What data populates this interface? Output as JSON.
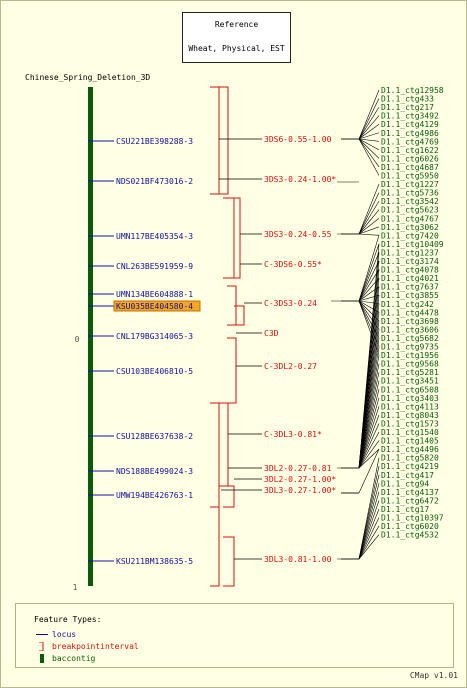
{
  "reference": {
    "title": "Reference",
    "subtitle": "Wheat, Physical, EST"
  },
  "map_title": "Chinese_Spring_Deletion_3D",
  "axis": {
    "start": "0",
    "end": "1"
  },
  "loci": [
    {
      "label": "CSU221BE398288-3"
    },
    {
      "label": "NDS021BF473016-2"
    },
    {
      "label": "UMN117BE405354-3"
    },
    {
      "label": "CNL263BE591959-9"
    },
    {
      "label": "UMN134BE604888-1"
    },
    {
      "label": "KSU035BE404580-4",
      "highlight": true
    },
    {
      "label": "CNL179BG314065-3"
    },
    {
      "label": "CSU103BE406810-5"
    },
    {
      "label": "CSU128BE637638-2"
    },
    {
      "label": "NDS188BE499024-3"
    },
    {
      "label": "UMW194BE426763-1"
    },
    {
      "label": "KSU211BM138635-5"
    }
  ],
  "intervals": [
    {
      "label": "3DS6-0.55-1.00"
    },
    {
      "label": "3DS3-0.24-1.00*"
    },
    {
      "label": "3DS3-0.24-0.55"
    },
    {
      "label": "C-3DS6-0.55*"
    },
    {
      "label": "C-3DS3-0.24"
    },
    {
      "label": "C3D"
    },
    {
      "label": "C-3DL2-0.27"
    },
    {
      "label": "C-3DL3-0.81*"
    },
    {
      "label": "3DL2-0.27-0.81"
    },
    {
      "label": "3DL2-0.27-1.00*"
    },
    {
      "label": "3DL3-0.27-1.00*"
    },
    {
      "label": "3DL3-0.81-1.00"
    }
  ],
  "contigs": [
    "D1.1_ctg12958",
    "D1.1_ctg433",
    "D1.1_ctg217",
    "D1.1_ctg3492",
    "D1.1_ctg4129",
    "D1.1_ctg4986",
    "D1.1_ctg4769",
    "D1.1_ctg1622",
    "D1.1_ctg6026",
    "D1.1_ctg4687",
    "D1.1_ctg5950",
    "D1.1_ctg1227",
    "D1.1_ctg5736",
    "D1.1_ctg3542",
    "D1.1_ctg5623",
    "D1.1_ctg4767",
    "D1.1_ctg3062",
    "D1.1_ctg7420",
    "D1.1_ctg10409",
    "D1.1_ctg1237",
    "D1.1_ctg3174",
    "D1.1_ctg4078",
    "D1.1_ctg4021",
    "D1.1_ctg7637",
    "D1.1_ctg3855",
    "D1.1_ctg242",
    "D1.1_ctg4478",
    "D1.1_ctg3698",
    "D1.1_ctg3606",
    "D1.1_ctg5682",
    "D1.1_ctg9735",
    "D1.1_ctg1956",
    "D1.1_ctg9568",
    "D1.1_ctg5281",
    "D1.1_ctg3451",
    "D1.1_ctg6508",
    "D1.1_ctg3403",
    "D1.1_ctg4113",
    "D1.1_ctg8043",
    "D1.1_ctg1573",
    "D1.1_ctg1540",
    "D1.1_ctg1405",
    "D1.1_ctg4496",
    "D1.1_ctg5820",
    "D1.1_ctg4219",
    "D1.1_ctg417",
    "D1.1_ctg94",
    "D1.1_ctg4137",
    "D1.1_ctg6472",
    "D1.1_ctg17",
    "D1.1_ctg10397",
    "D1.1_ctg6020",
    "D1.1_ctg4532"
  ],
  "legend": {
    "title": "Feature Types:",
    "items": [
      {
        "label": "locus",
        "color": "#1010a0",
        "icon": "line-icon"
      },
      {
        "label": "breakpointinterval",
        "color": "#cc1010",
        "icon": "bracket-icon"
      },
      {
        "label": "baccontig",
        "color": "#0a5a0a",
        "icon": "bar-icon"
      }
    ]
  },
  "version": "CMap v1.01",
  "colors": {
    "locus": "#1010a0",
    "interval": "#cc1010",
    "contig": "#0a5a0a",
    "highlight": "#f5a623",
    "background": "#ffffe4"
  }
}
